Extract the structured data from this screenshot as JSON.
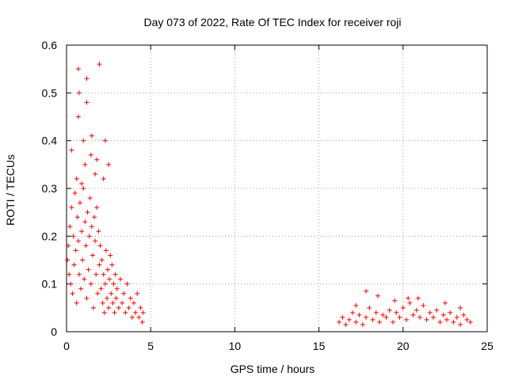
{
  "chart_data": {
    "type": "scatter",
    "title": "Day 073 of 2022, Rate Of TEC Index for receiver roji",
    "xlabel": "GPS time / hours",
    "ylabel": "ROTI / TECUs",
    "xlim": [
      0,
      25
    ],
    "ylim": [
      0,
      0.6
    ],
    "x_ticks": [
      "0",
      "5",
      "10",
      "15",
      "20",
      "25"
    ],
    "y_ticks": [
      "0",
      "0.1",
      "0.2",
      "0.3",
      "0.4",
      "0.5",
      "0.6"
    ],
    "grid": true,
    "marker": "+",
    "color": "#ff0000",
    "series": [
      {
        "points": [
          [
            0.05,
            0.15
          ],
          [
            0.1,
            0.18
          ],
          [
            0.15,
            0.12
          ],
          [
            0.2,
            0.22
          ],
          [
            0.25,
            0.1
          ],
          [
            0.3,
            0.26
          ],
          [
            0.35,
            0.08
          ],
          [
            0.4,
            0.2
          ],
          [
            0.45,
            0.14
          ],
          [
            0.5,
            0.29
          ],
          [
            0.55,
            0.17
          ],
          [
            0.6,
            0.06
          ],
          [
            0.65,
            0.24
          ],
          [
            0.7,
            0.19
          ],
          [
            0.75,
            0.12
          ],
          [
            0.8,
            0.27
          ],
          [
            0.85,
            0.09
          ],
          [
            0.9,
            0.21
          ],
          [
            0.95,
            0.15
          ],
          [
            1.0,
            0.3
          ],
          [
            1.05,
            0.11
          ],
          [
            1.1,
            0.23
          ],
          [
            1.15,
            0.18
          ],
          [
            1.2,
            0.07
          ],
          [
            1.25,
            0.25
          ],
          [
            1.3,
            0.13
          ],
          [
            1.35,
            0.2
          ],
          [
            1.4,
            0.28
          ],
          [
            1.45,
            0.1
          ],
          [
            1.5,
            0.22
          ],
          [
            1.55,
            0.16
          ],
          [
            1.6,
            0.05
          ],
          [
            1.65,
            0.24
          ],
          [
            1.7,
            0.19
          ],
          [
            1.75,
            0.12
          ],
          [
            1.8,
            0.26
          ],
          [
            1.85,
            0.08
          ],
          [
            1.9,
            0.21
          ],
          [
            1.95,
            0.14
          ],
          [
            2.0,
            0.18
          ],
          [
            2.05,
            0.09
          ],
          [
            2.1,
            0.15
          ],
          [
            2.15,
            0.06
          ],
          [
            2.2,
            0.12
          ],
          [
            2.25,
            0.04
          ],
          [
            2.3,
            0.1
          ],
          [
            2.35,
            0.17
          ],
          [
            2.4,
            0.07
          ],
          [
            2.45,
            0.13
          ],
          [
            2.5,
            0.05
          ],
          [
            2.55,
            0.11
          ],
          [
            2.6,
            0.16
          ],
          [
            2.65,
            0.08
          ],
          [
            2.7,
            0.14
          ],
          [
            2.75,
            0.06
          ],
          [
            2.8,
            0.1
          ],
          [
            2.85,
            0.04
          ],
          [
            2.9,
            0.12
          ],
          [
            2.95,
            0.07
          ],
          [
            3.0,
            0.09
          ],
          [
            3.1,
            0.05
          ],
          [
            3.2,
            0.11
          ],
          [
            3.3,
            0.06
          ],
          [
            3.4,
            0.08
          ],
          [
            3.5,
            0.04
          ],
          [
            3.6,
            0.1
          ],
          [
            3.7,
            0.05
          ],
          [
            3.8,
            0.07
          ],
          [
            3.9,
            0.03
          ],
          [
            4.0,
            0.06
          ],
          [
            4.1,
            0.04
          ],
          [
            4.2,
            0.08
          ],
          [
            4.3,
            0.03
          ],
          [
            4.4,
            0.05
          ],
          [
            4.5,
            0.02
          ],
          [
            4.55,
            0.04
          ],
          [
            0.3,
            0.38
          ],
          [
            0.7,
            0.55
          ],
          [
            0.75,
            0.5
          ],
          [
            0.7,
            0.45
          ],
          [
            1.2,
            0.53
          ],
          [
            1.2,
            0.48
          ],
          [
            1.95,
            0.56
          ],
          [
            1.0,
            0.4
          ],
          [
            1.5,
            0.41
          ],
          [
            1.45,
            0.37
          ],
          [
            2.3,
            0.4
          ],
          [
            2.5,
            0.35
          ],
          [
            1.8,
            0.36
          ],
          [
            2.2,
            0.32
          ],
          [
            0.6,
            0.32
          ],
          [
            1.1,
            0.35
          ],
          [
            0.9,
            0.31
          ],
          [
            1.7,
            0.33
          ],
          [
            16.2,
            0.02
          ],
          [
            16.4,
            0.03
          ],
          [
            16.6,
            0.015
          ],
          [
            16.8,
            0.025
          ],
          [
            17.0,
            0.04
          ],
          [
            17.2,
            0.02
          ],
          [
            17.4,
            0.035
          ],
          [
            17.6,
            0.015
          ],
          [
            17.8,
            0.03
          ],
          [
            18.0,
            0.05
          ],
          [
            18.2,
            0.025
          ],
          [
            18.4,
            0.04
          ],
          [
            18.6,
            0.02
          ],
          [
            18.8,
            0.035
          ],
          [
            19.0,
            0.03
          ],
          [
            19.2,
            0.045
          ],
          [
            19.4,
            0.02
          ],
          [
            19.6,
            0.04
          ],
          [
            19.8,
            0.03
          ],
          [
            20.0,
            0.05
          ],
          [
            20.2,
            0.025
          ],
          [
            20.4,
            0.06
          ],
          [
            20.6,
            0.035
          ],
          [
            20.8,
            0.045
          ],
          [
            21.0,
            0.03
          ],
          [
            21.2,
            0.055
          ],
          [
            21.4,
            0.025
          ],
          [
            21.6,
            0.04
          ],
          [
            21.8,
            0.03
          ],
          [
            22.0,
            0.045
          ],
          [
            22.2,
            0.02
          ],
          [
            22.4,
            0.035
          ],
          [
            22.6,
            0.025
          ],
          [
            22.8,
            0.04
          ],
          [
            23.0,
            0.02
          ],
          [
            23.2,
            0.03
          ],
          [
            23.4,
            0.015
          ],
          [
            23.6,
            0.035
          ],
          [
            23.8,
            0.025
          ],
          [
            24.0,
            0.02
          ],
          [
            17.8,
            0.085
          ],
          [
            18.5,
            0.075
          ],
          [
            20.3,
            0.07
          ],
          [
            20.9,
            0.07
          ],
          [
            22.5,
            0.06
          ],
          [
            23.4,
            0.05
          ],
          [
            17.2,
            0.055
          ],
          [
            19.5,
            0.065
          ]
        ]
      }
    ]
  }
}
